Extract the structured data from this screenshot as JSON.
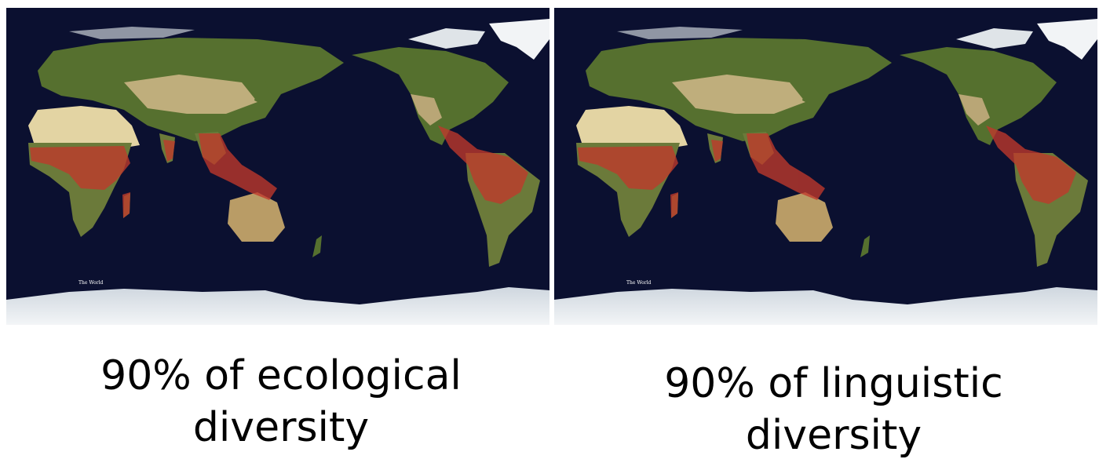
{
  "maps": [
    {
      "id": "ecological",
      "map_label": "The World",
      "caption_line1": "90% of ecological",
      "caption_line2": "diversity"
    },
    {
      "id": "linguistic",
      "map_label": "The World",
      "caption_line1": "90% of linguistic",
      "caption_line2": "diversity"
    }
  ],
  "colors": {
    "ocean": "#0b1030",
    "land_green": "#4f6b2e",
    "land_desert": "#d9c89a",
    "ice": "#e8ecef",
    "highlight": "#c0392b"
  }
}
